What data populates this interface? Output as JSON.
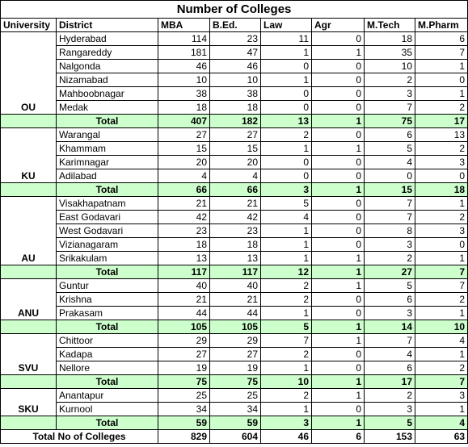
{
  "title": "Number of Colleges",
  "header": [
    "University",
    "District",
    "MBA",
    "B.Ed.",
    "Law",
    "Agr",
    "M.Tech",
    "M.Pharm"
  ],
  "universities": [
    {
      "name": "OU",
      "districts": [
        {
          "name": "Hyderabad",
          "values": [
            114,
            23,
            11,
            0,
            18,
            6
          ]
        },
        {
          "name": "Rangareddy",
          "values": [
            181,
            47,
            1,
            1,
            35,
            7
          ]
        },
        {
          "name": "Nalgonda",
          "values": [
            46,
            46,
            0,
            0,
            10,
            1
          ]
        },
        {
          "name": "Nizamabad",
          "values": [
            10,
            10,
            1,
            0,
            2,
            0
          ]
        },
        {
          "name": "Mahboobnagar",
          "values": [
            38,
            38,
            0,
            0,
            3,
            1
          ]
        },
        {
          "name": "Medak",
          "values": [
            18,
            18,
            0,
            0,
            7,
            2
          ]
        }
      ],
      "total_label": "Total",
      "total": [
        407,
        182,
        13,
        1,
        75,
        17
      ]
    },
    {
      "name": "KU",
      "districts": [
        {
          "name": "Warangal",
          "values": [
            27,
            27,
            2,
            0,
            6,
            13
          ]
        },
        {
          "name": "Khammam",
          "values": [
            15,
            15,
            1,
            1,
            5,
            2
          ]
        },
        {
          "name": "Karimnagar",
          "values": [
            20,
            20,
            0,
            0,
            4,
            3
          ]
        },
        {
          "name": "Adilabad",
          "values": [
            4,
            4,
            0,
            0,
            0,
            0
          ]
        }
      ],
      "total_label": "Total",
      "total": [
        66,
        66,
        3,
        1,
        15,
        18
      ]
    },
    {
      "name": "AU",
      "districts": [
        {
          "name": "Visakhapatnam",
          "values": [
            21,
            21,
            5,
            0,
            7,
            1
          ]
        },
        {
          "name": "East Godavari",
          "values": [
            42,
            42,
            4,
            0,
            7,
            2
          ]
        },
        {
          "name": "West Godavari",
          "values": [
            23,
            23,
            1,
            0,
            8,
            3
          ]
        },
        {
          "name": "Vizianagaram",
          "values": [
            18,
            18,
            1,
            0,
            3,
            0
          ]
        },
        {
          "name": "Srikakulam",
          "values": [
            13,
            13,
            1,
            1,
            2,
            1
          ]
        }
      ],
      "total_label": "Total",
      "total": [
        117,
        117,
        12,
        1,
        27,
        7
      ]
    },
    {
      "name": "ANU",
      "districts": [
        {
          "name": "Guntur",
          "values": [
            40,
            40,
            2,
            1,
            5,
            7
          ]
        },
        {
          "name": "Krishna",
          "values": [
            21,
            21,
            2,
            0,
            6,
            2
          ]
        },
        {
          "name": "Prakasam",
          "values": [
            44,
            44,
            1,
            0,
            3,
            1
          ]
        }
      ],
      "total_label": "Total",
      "total": [
        105,
        105,
        5,
        1,
        14,
        10
      ]
    },
    {
      "name": "SVU",
      "districts": [
        {
          "name": "Chittoor",
          "values": [
            29,
            29,
            7,
            1,
            7,
            4
          ]
        },
        {
          "name": "Kadapa",
          "values": [
            27,
            27,
            2,
            0,
            4,
            1
          ]
        },
        {
          "name": "Nellore",
          "values": [
            19,
            19,
            1,
            0,
            6,
            2
          ]
        }
      ],
      "total_label": "Total",
      "total": [
        75,
        75,
        10,
        1,
        17,
        7
      ]
    },
    {
      "name": "SKU",
      "districts": [
        {
          "name": "Anantapur",
          "values": [
            25,
            25,
            2,
            1,
            2,
            3
          ]
        },
        {
          "name": "Kurnool",
          "values": [
            34,
            34,
            1,
            0,
            3,
            1
          ]
        }
      ],
      "total_label": "Total",
      "total": [
        59,
        59,
        3,
        1,
        5,
        4
      ]
    }
  ],
  "grand_total_label": "Total No of Colleges",
  "grand_total": [
    829,
    604,
    46,
    6,
    153,
    63
  ]
}
